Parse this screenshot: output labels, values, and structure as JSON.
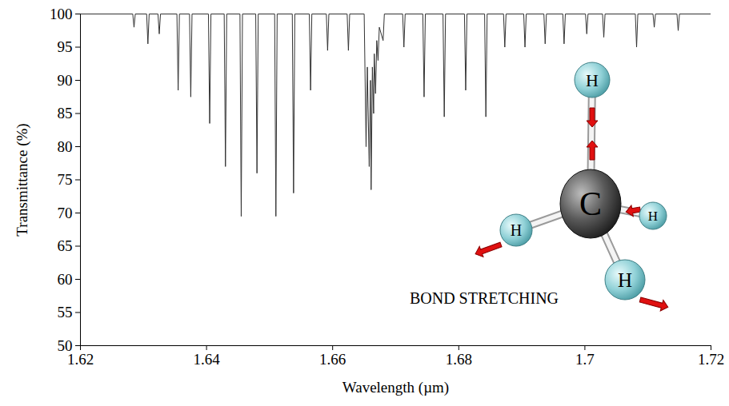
{
  "chart_data": {
    "type": "line",
    "xlabel": "Wavelength (µm)",
    "ylabel": "Transmittance (%)",
    "color": "#333333",
    "x": [
      1.62,
      1.6283,
      1.6285,
      1.6287,
      1.6305,
      1.6307,
      1.6309,
      1.6323,
      1.6325,
      1.6327,
      1.6353,
      1.6355,
      1.6357,
      1.6373,
      1.6375,
      1.6377,
      1.6403,
      1.6405,
      1.6407,
      1.6428,
      1.643,
      1.6432,
      1.6453,
      1.6455,
      1.6457,
      1.6478,
      1.648,
      1.6482,
      1.6508,
      1.651,
      1.6512,
      1.6536,
      1.6538,
      1.654,
      1.6563,
      1.6565,
      1.6567,
      1.659,
      1.6592,
      1.6594,
      1.6623,
      1.6625,
      1.6627,
      1.665,
      1.6653,
      1.6655,
      1.6658,
      1.666,
      1.6661,
      1.6663,
      1.6665,
      1.6666,
      1.6668,
      1.667,
      1.6672,
      1.6674,
      1.668,
      1.6682,
      1.6711,
      1.6713,
      1.6715,
      1.6743,
      1.6745,
      1.6747,
      1.6775,
      1.6777,
      1.6779,
      1.6809,
      1.6811,
      1.6813,
      1.6841,
      1.6843,
      1.6845,
      1.6871,
      1.6873,
      1.6875,
      1.6903,
      1.6905,
      1.6907,
      1.6935,
      1.6937,
      1.6939,
      1.6965,
      1.6967,
      1.6969,
      1.7001,
      1.7003,
      1.7005,
      1.7028,
      1.703,
      1.7032,
      1.708,
      1.7082,
      1.7084,
      1.7108,
      1.711,
      1.7112,
      1.7146,
      1.7148,
      1.715,
      1.72
    ],
    "values": [
      100,
      100,
      98,
      100,
      100,
      95.5,
      100,
      100,
      97,
      100,
      100,
      88.5,
      100,
      100,
      87.5,
      100,
      100,
      83.5,
      100,
      100,
      77,
      100,
      100,
      69.5,
      100,
      100,
      76,
      100,
      100,
      69.5,
      100,
      100,
      73,
      100,
      100,
      88.5,
      100,
      100,
      94.5,
      100,
      100,
      94.5,
      100,
      100,
      80,
      92,
      77,
      90,
      73.5,
      92,
      85,
      94,
      88,
      96,
      93,
      98,
      96,
      100,
      100,
      95,
      100,
      100,
      87.5,
      100,
      100,
      84.5,
      100,
      100,
      88.5,
      100,
      100,
      84.5,
      100,
      100,
      95,
      100,
      100,
      95,
      100,
      100,
      95.5,
      100,
      100,
      95.5,
      100,
      100,
      97,
      100,
      100,
      96.5,
      100,
      100,
      95,
      100,
      100,
      98,
      100,
      100,
      97.5,
      100,
      100
    ],
    "xlim": [
      1.62,
      1.72
    ],
    "xticks": [
      1.62,
      1.64,
      1.66,
      1.68,
      1.7,
      1.72
    ],
    "ylim": [
      50,
      100
    ],
    "yticks": [
      50,
      55,
      60,
      65,
      70,
      75,
      80,
      85,
      90,
      95,
      100
    ],
    "grid": false,
    "annotations": [
      "C",
      "H",
      "H",
      "H",
      "H",
      "BOND STRETCHING"
    ]
  }
}
